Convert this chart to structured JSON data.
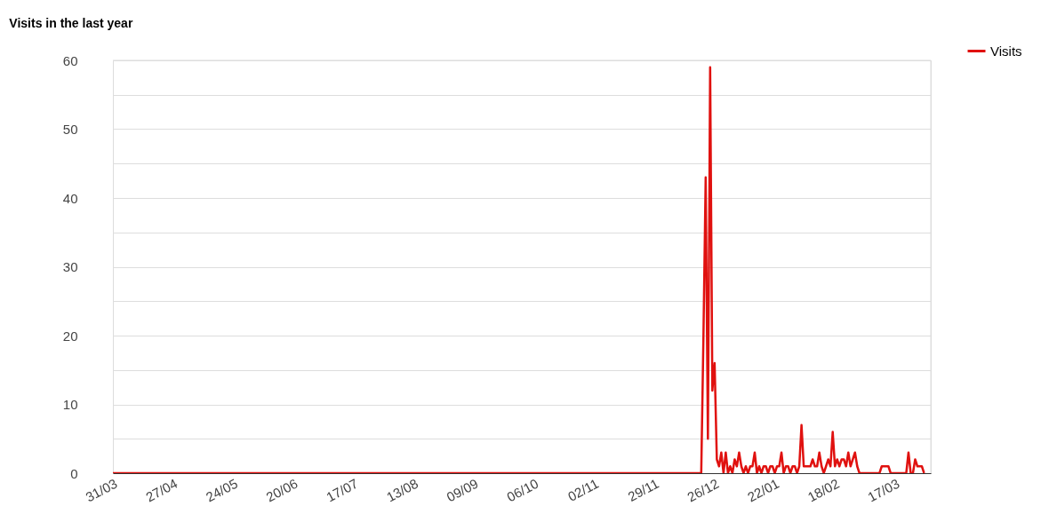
{
  "chart_data": {
    "type": "line",
    "title": "Visits in the last year",
    "x": [
      "2012-03-31",
      "2012-12-19",
      "2012-12-20",
      "2012-12-21",
      "2012-12-22",
      "2012-12-23",
      "2012-12-24",
      "2012-12-25",
      "2012-12-26",
      "2012-12-27",
      "2012-12-28",
      "2012-12-29",
      "2012-12-30",
      "2012-12-31",
      "2013-01-01",
      "2013-01-02",
      "2013-01-03",
      "2013-01-04",
      "2013-01-05",
      "2013-01-06",
      "2013-01-07",
      "2013-01-08",
      "2013-01-09",
      "2013-01-10",
      "2013-01-11",
      "2013-01-12",
      "2013-01-13",
      "2013-01-14",
      "2013-01-15",
      "2013-01-16",
      "2013-01-17",
      "2013-01-18",
      "2013-01-19",
      "2013-01-20",
      "2013-01-21",
      "2013-01-22",
      "2013-01-23",
      "2013-01-24",
      "2013-01-25",
      "2013-01-26",
      "2013-01-27",
      "2013-01-28",
      "2013-01-29",
      "2013-01-30",
      "2013-01-31",
      "2013-02-01",
      "2013-02-02",
      "2013-02-03",
      "2013-02-04",
      "2013-02-05",
      "2013-02-06",
      "2013-02-07",
      "2013-02-08",
      "2013-02-09",
      "2013-02-10",
      "2013-02-11",
      "2013-02-12",
      "2013-02-13",
      "2013-02-14",
      "2013-02-15",
      "2013-02-16",
      "2013-02-17",
      "2013-02-18",
      "2013-02-19",
      "2013-02-20",
      "2013-02-21",
      "2013-02-22",
      "2013-02-23",
      "2013-02-24",
      "2013-02-25",
      "2013-02-26",
      "2013-02-27",
      "2013-02-28",
      "2013-03-01",
      "2013-03-02",
      "2013-03-10",
      "2013-03-11",
      "2013-03-12",
      "2013-03-13",
      "2013-03-14",
      "2013-03-15",
      "2013-03-22",
      "2013-03-23",
      "2013-03-24",
      "2013-03-25",
      "2013-03-26",
      "2013-03-27",
      "2013-03-28",
      "2013-03-29",
      "2013-03-30"
    ],
    "series": [
      {
        "name": "Visits",
        "color": "#e0110f",
        "values": [
          0,
          0,
          0,
          20,
          43,
          5,
          59,
          12,
          16,
          2,
          1,
          3,
          0,
          3,
          0,
          1,
          0,
          2,
          1,
          3,
          1,
          0,
          1,
          0,
          1,
          1,
          3,
          0,
          1,
          0,
          1,
          1,
          0,
          1,
          1,
          0,
          1,
          1,
          3,
          0,
          1,
          1,
          0,
          1,
          1,
          0,
          1,
          7,
          1,
          1,
          1,
          1,
          2,
          1,
          1,
          3,
          1,
          0,
          1,
          2,
          1,
          6,
          1,
          2,
          1,
          2,
          2,
          1,
          3,
          1,
          2,
          3,
          1,
          0,
          0,
          0,
          1,
          1,
          1,
          1,
          0,
          0,
          3,
          0,
          0,
          2,
          1,
          1,
          1,
          0
        ]
      }
    ],
    "xlim": [
      "2012-03-31",
      "2013-04-02"
    ],
    "xticks": [
      {
        "value": "2012-03-31",
        "label": "31/03"
      },
      {
        "value": "2012-04-27",
        "label": "27/04"
      },
      {
        "value": "2012-05-24",
        "label": "24/05"
      },
      {
        "value": "2012-06-20",
        "label": "20/06"
      },
      {
        "value": "2012-07-17",
        "label": "17/07"
      },
      {
        "value": "2012-08-13",
        "label": "13/08"
      },
      {
        "value": "2012-09-09",
        "label": "09/09"
      },
      {
        "value": "2012-10-06",
        "label": "06/10"
      },
      {
        "value": "2012-11-02",
        "label": "02/11"
      },
      {
        "value": "2012-11-29",
        "label": "29/11"
      },
      {
        "value": "2012-12-26",
        "label": "26/12"
      },
      {
        "value": "2013-01-22",
        "label": "22/01"
      },
      {
        "value": "2013-02-18",
        "label": "18/02"
      },
      {
        "value": "2013-03-17",
        "label": "17/03"
      }
    ],
    "ylim": [
      0,
      60
    ],
    "yticks": [
      0,
      {
        "value": 5,
        "label": null
      },
      10,
      {
        "value": 15,
        "label": null
      },
      20,
      {
        "value": 25,
        "label": null
      },
      30,
      {
        "value": 35,
        "label": null
      },
      40,
      {
        "value": 45,
        "label": null
      },
      50,
      {
        "value": 55,
        "label": null
      },
      60
    ],
    "grid": "y",
    "legend": "top right",
    "marker": "none",
    "line_style": "solid"
  }
}
